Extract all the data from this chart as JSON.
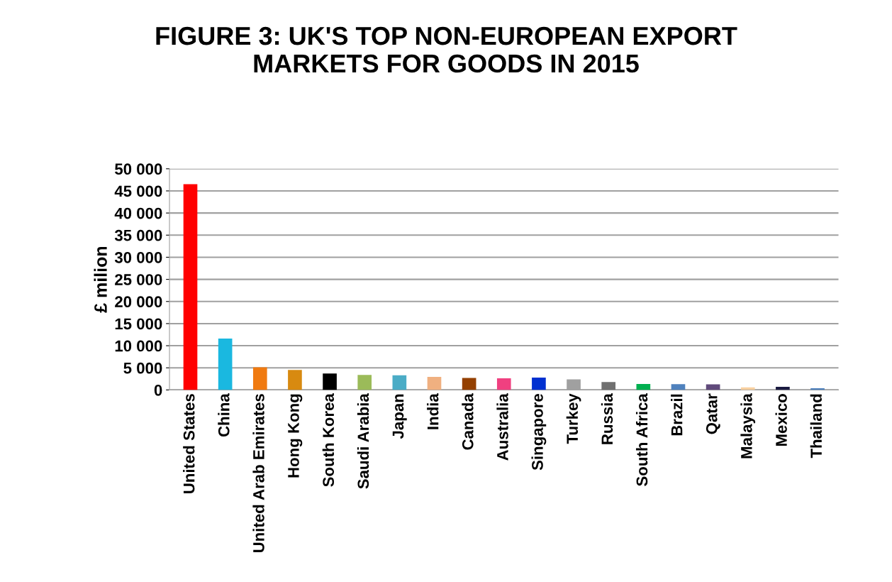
{
  "chart_data": {
    "type": "bar",
    "title": "FIGURE 3: UK'S TOP NON-EUROPEAN EXPORT\nMARKETS FOR GOODS IN 2015",
    "ylabel": "£ milion",
    "categories": [
      "United States",
      "China",
      "United Arab Emirates",
      "Hong Kong",
      "South Korea",
      "Saudi Arabia",
      "Japan",
      "India",
      "Canada",
      "Australia",
      "Singapore",
      "Turkey",
      "Russia",
      "South Africa",
      "Brazil",
      "Qatar",
      "Malaysia",
      "Mexico",
      "Thailand"
    ],
    "values": [
      46500,
      11600,
      5100,
      4500,
      3700,
      3400,
      3300,
      2950,
      2700,
      2650,
      2800,
      2400,
      1800,
      1350,
      1300,
      1250,
      600,
      700,
      400
    ],
    "colors": [
      "#ff0000",
      "#1ab8e0",
      "#f07a10",
      "#d88a10",
      "#000000",
      "#9bbb59",
      "#4bacc6",
      "#f0b080",
      "#944000",
      "#f04080",
      "#0030d0",
      "#a0a0a0",
      "#707070",
      "#00b050",
      "#4f81bd",
      "#604a7b",
      "#f8d0a0",
      "#1a1a40",
      "#4f81bd"
    ],
    "ylim": [
      0,
      50000
    ],
    "yticks": [
      0,
      {
        "value": 5000,
        "label": "5 000"
      },
      {
        "value": 10000,
        "label": "10 000"
      },
      {
        "value": 15000,
        "label": "15 000"
      },
      {
        "value": 20000,
        "label": "20 000"
      },
      {
        "value": 25000,
        "label": "25 000"
      },
      {
        "value": 30000,
        "label": "30 000"
      },
      {
        "value": 35000,
        "label": "35 000"
      },
      {
        "value": 40000,
        "label": "40 000"
      },
      {
        "value": 45000,
        "label": "45 000"
      },
      {
        "value": 50000,
        "label": "50 000"
      }
    ],
    "grid": "y",
    "legend": false
  }
}
